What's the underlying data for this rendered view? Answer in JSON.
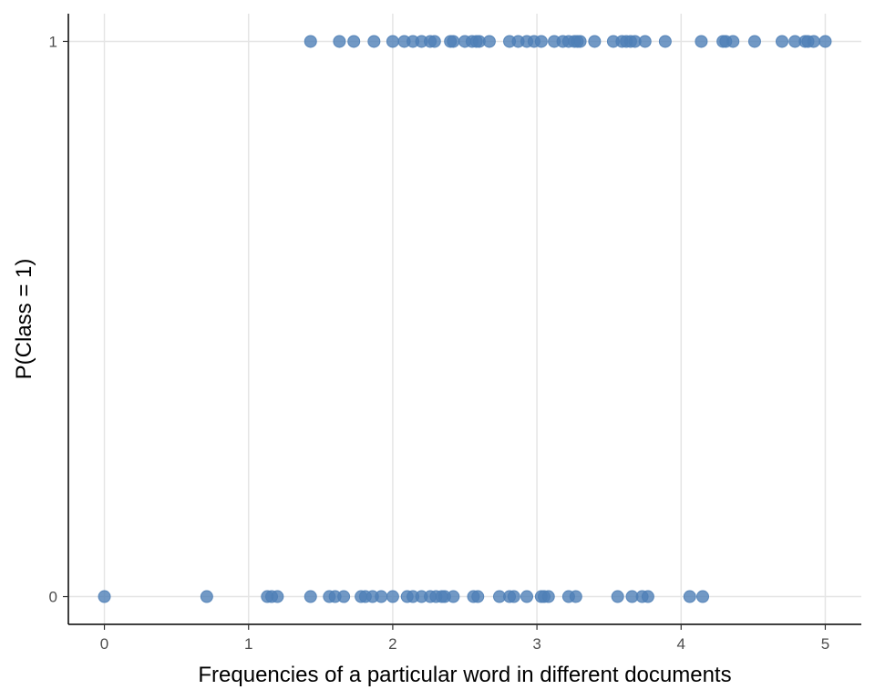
{
  "chart_data": {
    "type": "scatter",
    "title": "",
    "xlabel": "Frequencies of a particular word in different documents",
    "ylabel": "P(Class = 1)",
    "xlim": [
      -0.25,
      5.25
    ],
    "ylim": [
      -0.05,
      1.05
    ],
    "x_ticks": [
      0,
      1,
      2,
      3,
      4,
      5
    ],
    "y_ticks": [
      0,
      1
    ],
    "grid": true,
    "point_color": "#4f7fb6",
    "series": [
      {
        "values": [
          {
            "x": 1.43,
            "y": 1
          },
          {
            "x": 1.63,
            "y": 1
          },
          {
            "x": 1.73,
            "y": 1
          },
          {
            "x": 1.87,
            "y": 1
          },
          {
            "x": 2.0,
            "y": 1
          },
          {
            "x": 2.08,
            "y": 1
          },
          {
            "x": 2.14,
            "y": 1
          },
          {
            "x": 2.2,
            "y": 1
          },
          {
            "x": 2.26,
            "y": 1
          },
          {
            "x": 2.29,
            "y": 1
          },
          {
            "x": 2.4,
            "y": 1
          },
          {
            "x": 2.42,
            "y": 1
          },
          {
            "x": 2.5,
            "y": 1
          },
          {
            "x": 2.55,
            "y": 1
          },
          {
            "x": 2.58,
            "y": 1
          },
          {
            "x": 2.6,
            "y": 1
          },
          {
            "x": 2.67,
            "y": 1
          },
          {
            "x": 2.81,
            "y": 1
          },
          {
            "x": 2.87,
            "y": 1
          },
          {
            "x": 2.93,
            "y": 1
          },
          {
            "x": 2.98,
            "y": 1
          },
          {
            "x": 3.03,
            "y": 1
          },
          {
            "x": 3.12,
            "y": 1
          },
          {
            "x": 3.18,
            "y": 1
          },
          {
            "x": 3.22,
            "y": 1
          },
          {
            "x": 3.26,
            "y": 1
          },
          {
            "x": 3.28,
            "y": 1
          },
          {
            "x": 3.3,
            "y": 1
          },
          {
            "x": 3.4,
            "y": 1
          },
          {
            "x": 3.53,
            "y": 1
          },
          {
            "x": 3.59,
            "y": 1
          },
          {
            "x": 3.62,
            "y": 1
          },
          {
            "x": 3.65,
            "y": 1
          },
          {
            "x": 3.68,
            "y": 1
          },
          {
            "x": 3.75,
            "y": 1
          },
          {
            "x": 3.89,
            "y": 1
          },
          {
            "x": 4.14,
            "y": 1
          },
          {
            "x": 4.29,
            "y": 1
          },
          {
            "x": 4.31,
            "y": 1
          },
          {
            "x": 4.36,
            "y": 1
          },
          {
            "x": 4.51,
            "y": 1
          },
          {
            "x": 4.7,
            "y": 1
          },
          {
            "x": 4.79,
            "y": 1
          },
          {
            "x": 4.86,
            "y": 1
          },
          {
            "x": 4.88,
            "y": 1
          },
          {
            "x": 4.92,
            "y": 1
          },
          {
            "x": 5.0,
            "y": 1
          },
          {
            "x": 0.0,
            "y": 0
          },
          {
            "x": 0.71,
            "y": 0
          },
          {
            "x": 1.13,
            "y": 0
          },
          {
            "x": 1.16,
            "y": 0
          },
          {
            "x": 1.2,
            "y": 0
          },
          {
            "x": 1.43,
            "y": 0
          },
          {
            "x": 1.56,
            "y": 0
          },
          {
            "x": 1.6,
            "y": 0
          },
          {
            "x": 1.66,
            "y": 0
          },
          {
            "x": 1.78,
            "y": 0
          },
          {
            "x": 1.81,
            "y": 0
          },
          {
            "x": 1.86,
            "y": 0
          },
          {
            "x": 1.92,
            "y": 0
          },
          {
            "x": 2.0,
            "y": 0
          },
          {
            "x": 2.1,
            "y": 0
          },
          {
            "x": 2.14,
            "y": 0
          },
          {
            "x": 2.2,
            "y": 0
          },
          {
            "x": 2.26,
            "y": 0
          },
          {
            "x": 2.3,
            "y": 0
          },
          {
            "x": 2.34,
            "y": 0
          },
          {
            "x": 2.36,
            "y": 0
          },
          {
            "x": 2.42,
            "y": 0
          },
          {
            "x": 2.56,
            "y": 0
          },
          {
            "x": 2.59,
            "y": 0
          },
          {
            "x": 2.74,
            "y": 0
          },
          {
            "x": 2.81,
            "y": 0
          },
          {
            "x": 2.84,
            "y": 0
          },
          {
            "x": 2.93,
            "y": 0
          },
          {
            "x": 3.03,
            "y": 0
          },
          {
            "x": 3.05,
            "y": 0
          },
          {
            "x": 3.08,
            "y": 0
          },
          {
            "x": 3.22,
            "y": 0
          },
          {
            "x": 3.27,
            "y": 0
          },
          {
            "x": 3.56,
            "y": 0
          },
          {
            "x": 3.66,
            "y": 0
          },
          {
            "x": 3.73,
            "y": 0
          },
          {
            "x": 3.77,
            "y": 0
          },
          {
            "x": 4.06,
            "y": 0
          },
          {
            "x": 4.15,
            "y": 0
          }
        ]
      }
    ]
  }
}
